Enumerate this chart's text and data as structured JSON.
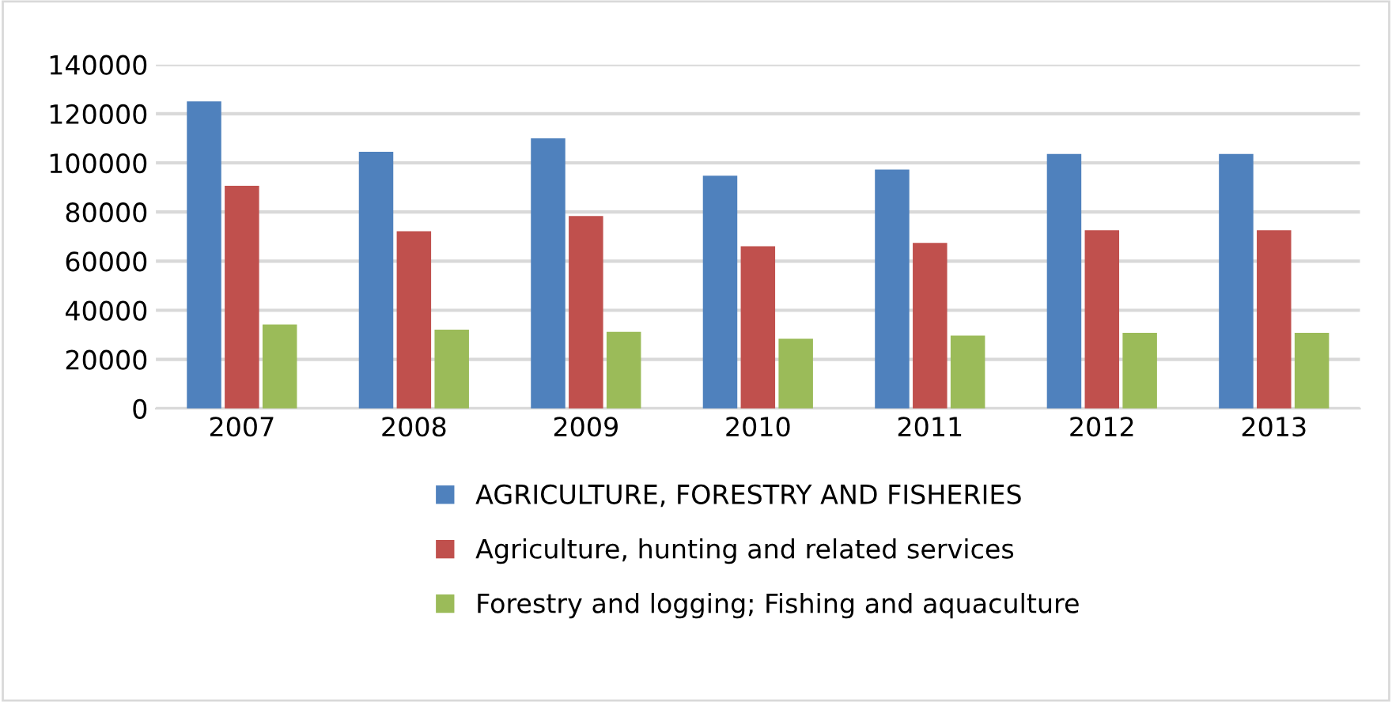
{
  "chart_data": {
    "type": "bar",
    "categories": [
      "2007",
      "2008",
      "2009",
      "2010",
      "2011",
      "2012",
      "2013"
    ],
    "series": [
      {
        "name": "AGRICULTURE, FORESTRY AND FISHERIES",
        "color": "#4f81bd",
        "values": [
          125000,
          104500,
          110000,
          94800,
          97300,
          103600,
          103600
        ]
      },
      {
        "name": "Agriculture, hunting and related services",
        "color": "#c0504d",
        "values": [
          90700,
          72200,
          78400,
          66100,
          67400,
          72600,
          72600
        ]
      },
      {
        "name": "Forestry and logging; Fishing and aquaculture",
        "color": "#9bbb59",
        "values": [
          34200,
          32100,
          31200,
          28400,
          29700,
          30800,
          30800
        ]
      }
    ],
    "ylim": [
      0,
      140000
    ],
    "yticks": [
      0,
      20000,
      40000,
      60000,
      80000,
      100000,
      120000,
      140000
    ],
    "grid": "y",
    "legend": "bottom"
  }
}
